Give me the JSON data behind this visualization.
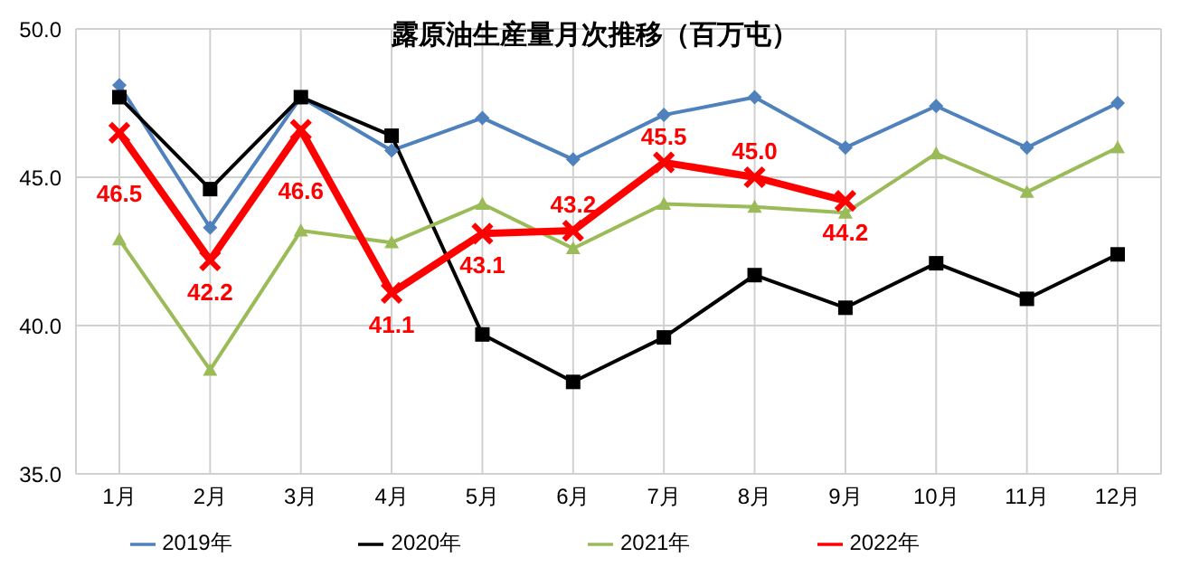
{
  "chart_data": {
    "type": "line",
    "title": "露原油生産量月次推移（百万屯）",
    "categories": [
      "1月",
      "2月",
      "3月",
      "4月",
      "5月",
      "6月",
      "7月",
      "8月",
      "9月",
      "10月",
      "11月",
      "12月"
    ],
    "ylim": [
      35,
      50
    ],
    "yticks": [
      {
        "value": 35,
        "label": "35.0"
      },
      {
        "value": 40,
        "label": "40.0"
      },
      {
        "value": 45,
        "label": "45.0"
      },
      {
        "value": 50,
        "label": "50.0"
      }
    ],
    "grid": true,
    "legend": "bottom",
    "series": [
      {
        "name": "2019年",
        "color": "#4f81bd",
        "marker": "diamond",
        "values": [
          48.1,
          43.3,
          47.7,
          45.9,
          47.0,
          45.6,
          47.1,
          47.7,
          46.0,
          47.4,
          46.0,
          47.5
        ]
      },
      {
        "name": "2020年",
        "color": "#000000",
        "marker": "square",
        "values": [
          47.7,
          44.6,
          47.7,
          46.4,
          39.7,
          38.1,
          39.6,
          41.7,
          40.6,
          42.1,
          40.9,
          42.4
        ]
      },
      {
        "name": "2021年",
        "color": "#9bbb59",
        "marker": "triangle",
        "values": [
          42.9,
          38.5,
          43.2,
          42.8,
          44.1,
          42.6,
          44.1,
          44.0,
          43.8,
          45.8,
          44.5,
          46.0
        ]
      },
      {
        "name": "2022年",
        "color": "#ff0000",
        "marker": "cross",
        "values": [
          46.5,
          42.2,
          46.6,
          41.1,
          43.1,
          43.2,
          45.5,
          45.0,
          44.2,
          null,
          null,
          null
        ],
        "value_labels": [
          "46.5",
          "42.2",
          "46.6",
          "41.1",
          "43.1",
          "43.2",
          "45.5",
          "45.0",
          "44.2",
          null,
          null,
          null
        ]
      }
    ]
  }
}
